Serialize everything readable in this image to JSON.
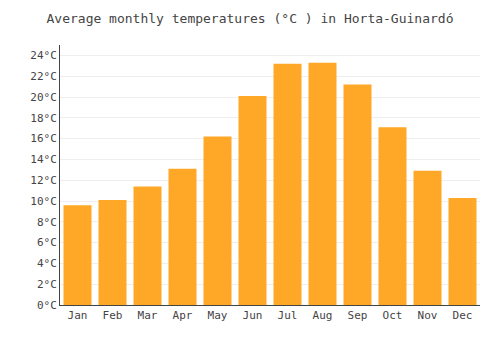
{
  "chart_data": {
    "type": "bar",
    "title": "Average monthly temperatures (°C ) in Horta-Guinardó",
    "categories": [
      "Jan",
      "Feb",
      "Mar",
      "Apr",
      "May",
      "Jun",
      "Jul",
      "Aug",
      "Sep",
      "Oct",
      "Nov",
      "Dec"
    ],
    "values": [
      9.6,
      10.1,
      11.4,
      13.1,
      16.2,
      20.1,
      23.2,
      23.3,
      21.2,
      17.1,
      12.9,
      10.3
    ],
    "color": "#FFA726",
    "ylim": [
      0,
      25
    ],
    "yticks": [
      {
        "value": 0,
        "label": "0°C"
      },
      {
        "value": 2,
        "label": "2°C"
      },
      {
        "value": 4,
        "label": "4°C"
      },
      {
        "value": 6,
        "label": "6°C"
      },
      {
        "value": 8,
        "label": "8°C"
      },
      {
        "value": 10,
        "label": "10°C"
      },
      {
        "value": 12,
        "label": "12°C"
      },
      {
        "value": 14,
        "label": "14°C"
      },
      {
        "value": 16,
        "label": "16°C"
      },
      {
        "value": 18,
        "label": "18°C"
      },
      {
        "value": 20,
        "label": "20°C"
      },
      {
        "value": 22,
        "label": "22°C"
      },
      {
        "value": 24,
        "label": "24°C"
      }
    ],
    "grid": true
  }
}
